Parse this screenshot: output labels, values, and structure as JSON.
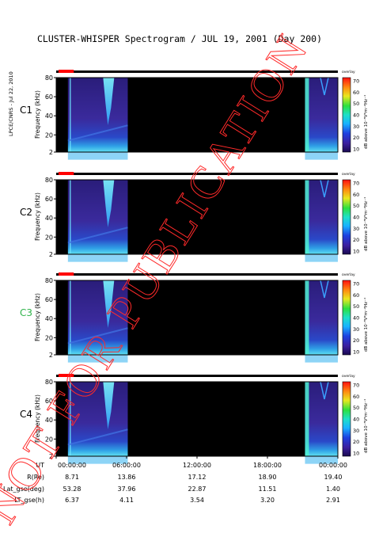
{
  "title": "CLUSTER-WHISPER Spectrogram / JUL 19, 2001 (Day 200)",
  "side_label": "LPCE/CNRS - Jul 22, 2010",
  "watermark": "NOT FOR PUBLICATION",
  "colorbar": {
    "ticks": [
      "70",
      "60",
      "50",
      "40",
      "30",
      "20",
      "10"
    ],
    "label": "dB above 10⁻⁸V²m⁻²Hz⁻¹",
    "mode_label": "overlay"
  },
  "ylabel": "Frequency (kHz)",
  "panels": [
    {
      "name": "C1",
      "color": "#000000"
    },
    {
      "name": "C2",
      "color": "#000000"
    },
    {
      "name": "C3",
      "color": "#2fb34a"
    },
    {
      "name": "C4",
      "color": "#000000"
    }
  ],
  "orbit_table": {
    "rows": [
      {
        "label": "UT",
        "values": [
          "00:00:00",
          "06:00:00",
          "12:00:00",
          "18:00:00",
          "00:00:00"
        ]
      },
      {
        "label": "R(Re)",
        "values": [
          "8.71",
          "13.86",
          "17.12",
          "18.90",
          "19.40"
        ]
      },
      {
        "label": "Lat_gse(deg)",
        "values": [
          "53.28",
          "37.96",
          "22.87",
          "11.51",
          "1.40"
        ]
      },
      {
        "label": "LT_gse(h)",
        "values": [
          "6.37",
          "4.11",
          "3.54",
          "3.20",
          "2.91"
        ]
      }
    ]
  },
  "chart_data": {
    "type": "heatmap",
    "title": "CLUSTER-WHISPER Spectrogram / JUL 19, 2001 (Day 200)",
    "xlabel": "UT",
    "ylabel": "Frequency (kHz)",
    "ylim": [
      2,
      80
    ],
    "yticks": [
      2,
      20,
      40,
      60,
      80
    ],
    "xticks": [
      "00:00:00",
      "06:00:00",
      "12:00:00",
      "18:00:00",
      "00:00:00"
    ],
    "xlim_hours": [
      0,
      24
    ],
    "colorbar_range_db": [
      10,
      70
    ],
    "series": [
      {
        "name": "C1",
        "active_intervals_hours": [
          [
            1.0,
            6.1
          ],
          [
            21.2,
            24.0
          ]
        ]
      },
      {
        "name": "C2",
        "active_intervals_hours": [
          [
            1.0,
            6.1
          ],
          [
            21.2,
            24.0
          ]
        ]
      },
      {
        "name": "C3",
        "active_intervals_hours": [
          [
            1.0,
            6.1
          ],
          [
            21.2,
            24.0
          ]
        ]
      },
      {
        "name": "C4",
        "active_intervals_hours": [
          [
            1.0,
            6.1
          ],
          [
            21.2,
            24.0
          ]
        ]
      }
    ]
  }
}
